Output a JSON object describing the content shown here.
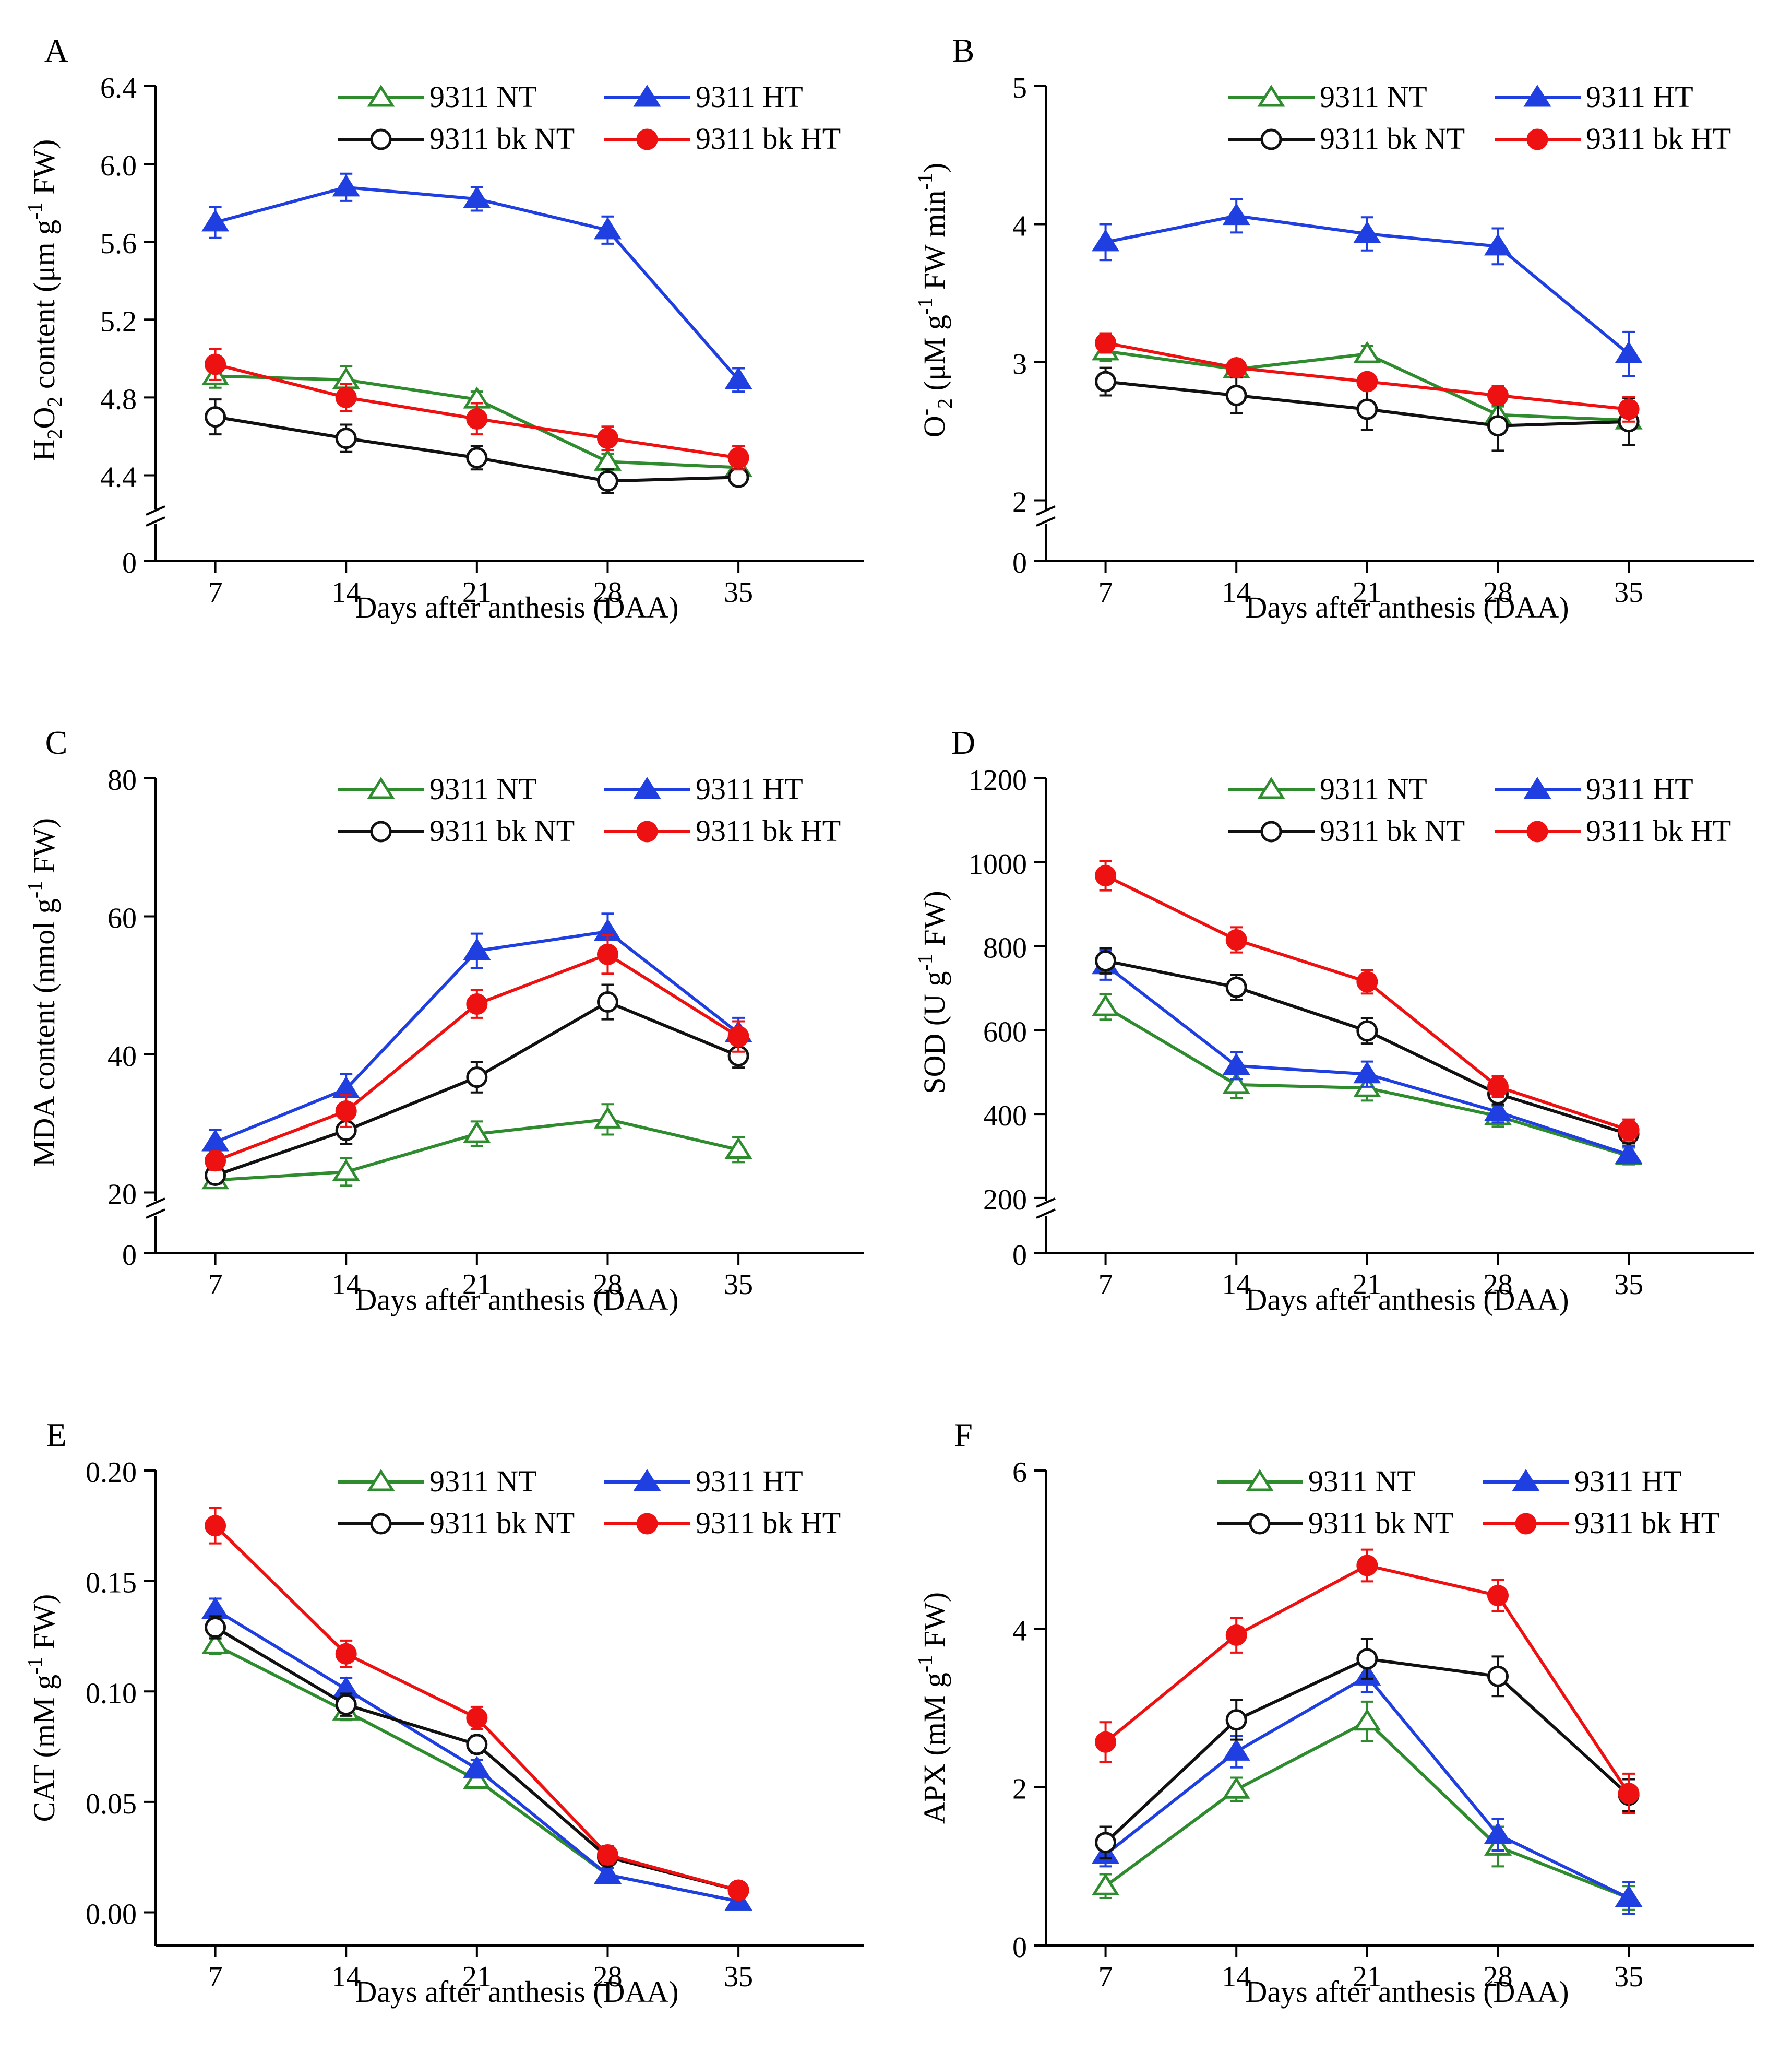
{
  "figure": {
    "xlabel": "Days after anthesis (DAA)",
    "series_colors": {
      "9311 NT": "#2e8b2e",
      "9311 HT": "#1f3fe0",
      "9311 bk NT": "#111111",
      "9311 bk HT": "#ee1111"
    },
    "legend": [
      {
        "label": "9311 NT",
        "color": "#2e8b2e",
        "marker": "open-triangle"
      },
      {
        "label": "9311 HT",
        "color": "#1f3fe0",
        "marker": "filled-triangle"
      },
      {
        "label": "9311 bk NT",
        "color": "#111111",
        "marker": "open-circle"
      },
      {
        "label": "9311 bk HT",
        "color": "#ee1111",
        "marker": "filled-circle"
      }
    ]
  },
  "chart_data": [
    {
      "panel": "A",
      "type": "line",
      "ylabel": "H2O2 content (μm g-1 FW)",
      "ylabel_rich": [
        [
          "H",
          ""
        ],
        [
          "2",
          "sub"
        ],
        [
          "O",
          ""
        ],
        [
          "2",
          "sub"
        ],
        [
          " content (μm g",
          ""
        ],
        [
          "-1",
          "sup"
        ],
        [
          " FW)",
          ""
        ]
      ],
      "x": [
        7,
        14,
        21,
        28,
        35
      ],
      "xticks": [
        "7",
        "14",
        "21",
        "28",
        "35"
      ],
      "ylim": [
        4.2,
        6.4
      ],
      "ybreak": true,
      "yticks": [
        4.4,
        4.8,
        5.2,
        5.6,
        6.0,
        6.4
      ],
      "ytick_labels": [
        "4.4",
        "4.8",
        "5.2",
        "5.6",
        "6.0",
        "6.4"
      ],
      "series": [
        {
          "name": "9311 NT",
          "values": [
            4.91,
            4.89,
            4.79,
            4.47,
            4.44
          ],
          "errors": [
            0.06,
            0.07,
            0.04,
            0.04,
            0.03
          ]
        },
        {
          "name": "9311 HT",
          "values": [
            5.7,
            5.88,
            5.82,
            5.66,
            4.89
          ],
          "errors": [
            0.08,
            0.07,
            0.06,
            0.07,
            0.06
          ]
        },
        {
          "name": "9311 bk NT",
          "values": [
            4.7,
            4.59,
            4.49,
            4.37,
            4.39
          ],
          "errors": [
            0.09,
            0.07,
            0.06,
            0.06,
            0.04
          ]
        },
        {
          "name": "9311 bk HT",
          "values": [
            4.97,
            4.8,
            4.69,
            4.59,
            4.49
          ],
          "errors": [
            0.08,
            0.07,
            0.08,
            0.06,
            0.06
          ]
        }
      ]
    },
    {
      "panel": "B",
      "type": "line",
      "ylabel": "O2- (μM g-1 FW min-1)",
      "ylabel_rich": [
        [
          "O",
          ""
        ],
        [
          "-",
          "sup"
        ],
        [
          "2",
          "sub"
        ],
        [
          " (μM g",
          ""
        ],
        [
          "-1",
          "sup"
        ],
        [
          " FW min",
          ""
        ],
        [
          "-1",
          "sup"
        ],
        [
          ")",
          ""
        ]
      ],
      "x": [
        7,
        14,
        21,
        28,
        35
      ],
      "xticks": [
        "7",
        "14",
        "21",
        "28",
        "35"
      ],
      "ylim": [
        1.9,
        5
      ],
      "ybreak": true,
      "yticks": [
        2,
        3,
        4,
        5
      ],
      "ytick_labels": [
        "2",
        "3",
        "4",
        "5"
      ],
      "series": [
        {
          "name": "9311 NT",
          "values": [
            3.08,
            2.95,
            3.06,
            2.62,
            2.58
          ],
          "errors": [
            0.07,
            0.05,
            0.06,
            0.06,
            0.05
          ]
        },
        {
          "name": "9311 HT",
          "values": [
            3.87,
            4.06,
            3.93,
            3.84,
            3.06
          ],
          "errors": [
            0.13,
            0.12,
            0.12,
            0.13,
            0.16
          ]
        },
        {
          "name": "9311 bk NT",
          "values": [
            2.86,
            2.76,
            2.66,
            2.54,
            2.57
          ],
          "errors": [
            0.1,
            0.13,
            0.15,
            0.18,
            0.17
          ]
        },
        {
          "name": "9311 bk HT",
          "values": [
            3.14,
            2.96,
            2.86,
            2.76,
            2.66
          ],
          "errors": [
            0.07,
            0.06,
            0.05,
            0.07,
            0.09
          ]
        }
      ]
    },
    {
      "panel": "C",
      "type": "line",
      "ylabel": "MDA content (nmol g-1 FW)",
      "ylabel_rich": [
        [
          "MDA content (nmol g",
          ""
        ],
        [
          "-1",
          "sup"
        ],
        [
          " FW)",
          ""
        ]
      ],
      "x": [
        7,
        14,
        21,
        28,
        35
      ],
      "xticks": [
        "7",
        "14",
        "21",
        "28",
        "35"
      ],
      "ylim": [
        18,
        80
      ],
      "ybreak": true,
      "yticks": [
        20,
        40,
        60,
        80
      ],
      "ytick_labels": [
        "20",
        "40",
        "60",
        "80"
      ],
      "series": [
        {
          "name": "9311 NT",
          "values": [
            21.8,
            23,
            28.5,
            30.6,
            26.2
          ],
          "errors": [
            1,
            2,
            1.8,
            2.2,
            1.8
          ]
        },
        {
          "name": "9311 HT",
          "values": [
            27.3,
            35,
            55,
            57.8,
            43.1
          ],
          "errors": [
            1.8,
            2.2,
            2.5,
            2.6,
            2.2
          ]
        },
        {
          "name": "9311 bk NT",
          "values": [
            22.5,
            29,
            36.7,
            47.6,
            39.8
          ],
          "errors": [
            1.2,
            2,
            2.2,
            2.5,
            1.7
          ]
        },
        {
          "name": "9311 bk HT",
          "values": [
            24.6,
            31.8,
            47.3,
            54.5,
            42.6
          ],
          "errors": [
            1.3,
            2.3,
            2,
            2.8,
            2.2
          ]
        }
      ]
    },
    {
      "panel": "D",
      "type": "line",
      "ylabel": "SOD (U g-1 FW)",
      "ylabel_rich": [
        [
          "SOD (U g",
          ""
        ],
        [
          "-1",
          "sup"
        ],
        [
          " FW)",
          ""
        ]
      ],
      "x": [
        7,
        14,
        21,
        28,
        35
      ],
      "xticks": [
        "7",
        "14",
        "21",
        "28",
        "35"
      ],
      "ylim": [
        180,
        1200
      ],
      "ybreak": true,
      "yticks": [
        200,
        400,
        600,
        800,
        1000,
        1200
      ],
      "ytick_labels": [
        "200",
        "400",
        "600",
        "800",
        "1000",
        "1200"
      ],
      "series": [
        {
          "name": "9311 NT",
          "values": [
            655,
            470,
            462,
            395,
            300
          ],
          "errors": [
            30,
            32,
            30,
            25,
            20
          ]
        },
        {
          "name": "9311 HT",
          "values": [
            755,
            515,
            495,
            405,
            303
          ],
          "errors": [
            35,
            32,
            30,
            25,
            20
          ]
        },
        {
          "name": "9311 bk NT",
          "values": [
            765,
            702,
            598,
            448,
            352
          ],
          "errors": [
            30,
            30,
            30,
            25,
            22
          ]
        },
        {
          "name": "9311 bk HT",
          "values": [
            968,
            815,
            715,
            465,
            362
          ],
          "errors": [
            35,
            30,
            28,
            25,
            25
          ]
        }
      ]
    },
    {
      "panel": "E",
      "type": "line",
      "ylabel": "CAT (mM g-1 FW)",
      "ylabel_rich": [
        [
          "CAT (mM g",
          ""
        ],
        [
          "-1",
          "sup"
        ],
        [
          " FW)",
          ""
        ]
      ],
      "x": [
        7,
        14,
        21,
        28,
        35
      ],
      "xticks": [
        "7",
        "14",
        "21",
        "28",
        "35"
      ],
      "ylim": [
        -0.015,
        0.2
      ],
      "ybreak": false,
      "yticks": [
        0,
        0.05,
        0.1,
        0.15,
        0.2
      ],
      "ytick_labels": [
        "0.00",
        "0.05",
        "0.10",
        "0.15",
        "0.20"
      ],
      "series": [
        {
          "name": "9311 NT",
          "values": [
            0.121,
            0.091,
            0.06,
            0.017,
            0.005
          ],
          "errors": [
            0.004,
            0.004,
            0.003,
            0.003,
            0.002
          ]
        },
        {
          "name": "9311 HT",
          "values": [
            0.137,
            0.101,
            0.065,
            0.017,
            0.005
          ],
          "errors": [
            0.005,
            0.005,
            0.004,
            0.003,
            0.003
          ]
        },
        {
          "name": "9311 bk NT",
          "values": [
            0.129,
            0.094,
            0.076,
            0.025,
            0.01
          ],
          "errors": [
            0.005,
            0.005,
            0.004,
            0.003,
            0.002
          ]
        },
        {
          "name": "9311 bk HT",
          "values": [
            0.175,
            0.117,
            0.088,
            0.026,
            0.01
          ],
          "errors": [
            0.008,
            0.006,
            0.005,
            0.004,
            0.002
          ]
        }
      ]
    },
    {
      "panel": "F",
      "type": "line",
      "ylabel": "APX (mM g-1 FW)",
      "ylabel_rich": [
        [
          "APX (mM g",
          ""
        ],
        [
          "-1",
          "sup"
        ],
        [
          " FW)",
          ""
        ]
      ],
      "x": [
        7,
        14,
        21,
        28,
        35
      ],
      "xticks": [
        "7",
        "14",
        "21",
        "28",
        "35"
      ],
      "ylim": [
        0,
        6
      ],
      "ybreak": false,
      "yticks": [
        0,
        2,
        4,
        6
      ],
      "ytick_labels": [
        "0",
        "2",
        "4",
        "6"
      ],
      "series": [
        {
          "name": "9311 NT",
          "values": [
            0.75,
            1.97,
            2.83,
            1.25,
            0.6
          ],
          "errors": [
            0.15,
            0.15,
            0.25,
            0.25,
            0.15
          ]
        },
        {
          "name": "9311 HT",
          "values": [
            1.15,
            2.45,
            3.4,
            1.4,
            0.6
          ],
          "errors": [
            0.15,
            0.2,
            0.2,
            0.2,
            0.2
          ]
        },
        {
          "name": "9311 bk NT",
          "values": [
            1.3,
            2.85,
            3.62,
            3.4,
            1.9
          ],
          "errors": [
            0.2,
            0.25,
            0.25,
            0.25,
            0.2
          ]
        },
        {
          "name": "9311 bk HT",
          "values": [
            2.57,
            3.92,
            4.8,
            4.42,
            1.92
          ],
          "errors": [
            0.25,
            0.22,
            0.2,
            0.2,
            0.25
          ]
        }
      ]
    }
  ]
}
